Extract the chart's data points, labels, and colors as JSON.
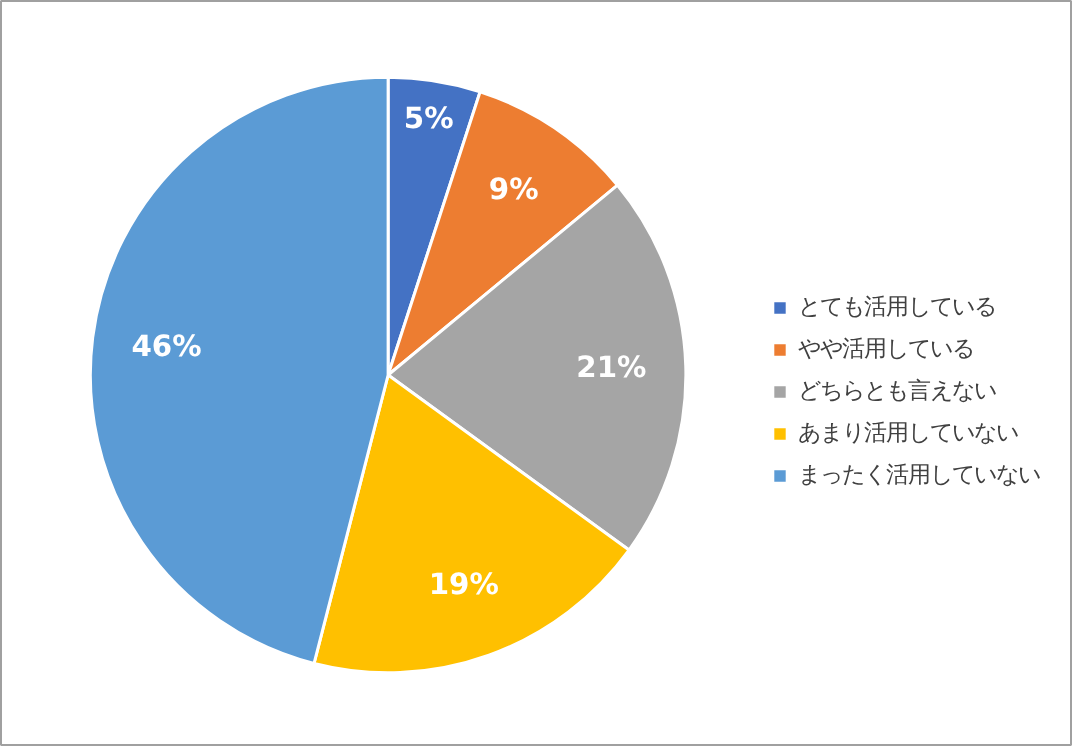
{
  "chart_data": {
    "type": "pie",
    "categories": [
      "とても活用している",
      "やや活用している",
      "どちらとも言えない",
      "あまり活用していない",
      "まったく活用していない"
    ],
    "values": [
      5,
      9,
      21,
      19,
      46
    ],
    "colors": [
      "#4472c4",
      "#ed7d31",
      "#a5a5a5",
      "#ffc000",
      "#5b9bd5"
    ],
    "value_labels": [
      "5%",
      "9%",
      "21%",
      "19%",
      "46%"
    ],
    "legend": "right"
  }
}
